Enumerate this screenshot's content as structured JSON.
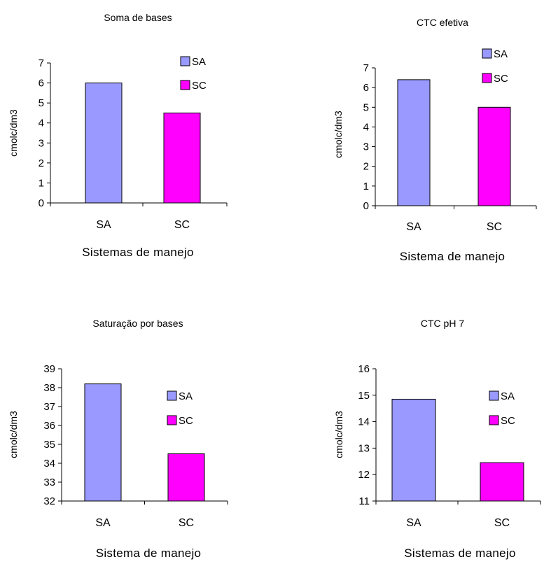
{
  "colors": {
    "SA": "#9999ff",
    "SC": "#ff00ff",
    "axis": "#000000"
  },
  "chart_data": [
    {
      "type": "bar",
      "title": "Soma de bases",
      "xlabel": "Sistemas de manejo",
      "ylabel": "cmolc/dm3",
      "categories": [
        "SA",
        "SC"
      ],
      "values": [
        6.0,
        4.5
      ],
      "ylim": [
        0,
        7
      ],
      "yticks": [
        0,
        1,
        2,
        3,
        4,
        5,
        6,
        7
      ],
      "legend": [
        "SA",
        "SC"
      ],
      "legend_position": "top-right",
      "grid": false
    },
    {
      "type": "bar",
      "title": "CTC efetiva",
      "xlabel": "Sistema de manejo",
      "ylabel": "cmolc/dm3",
      "categories": [
        "SA",
        "SC"
      ],
      "values": [
        6.4,
        5.0
      ],
      "ylim": [
        0,
        7
      ],
      "yticks": [
        0,
        1,
        2,
        3,
        4,
        5,
        6,
        7
      ],
      "legend": [
        "SA",
        "SC"
      ],
      "legend_position": "top-right",
      "grid": false
    },
    {
      "type": "bar",
      "title": "Saturação por bases",
      "xlabel": "Sistema de manejo",
      "ylabel": "cmolc/dm3",
      "categories": [
        "SA",
        "SC"
      ],
      "values": [
        38.2,
        34.5
      ],
      "ylim": [
        32,
        39
      ],
      "yticks": [
        32,
        33,
        34,
        35,
        36,
        37,
        38,
        39
      ],
      "legend": [
        "SA",
        "SC"
      ],
      "legend_position": "right",
      "grid": false
    },
    {
      "type": "bar",
      "title": "CTC pH 7",
      "xlabel": "Sistemas de manejo",
      "ylabel": "cmolc/dm3",
      "categories": [
        "SA",
        "SC"
      ],
      "values": [
        14.85,
        12.45
      ],
      "ylim": [
        11,
        16
      ],
      "yticks": [
        11,
        12,
        13,
        14,
        15,
        16
      ],
      "legend": [
        "SA",
        "SC"
      ],
      "legend_position": "right",
      "grid": false
    }
  ]
}
